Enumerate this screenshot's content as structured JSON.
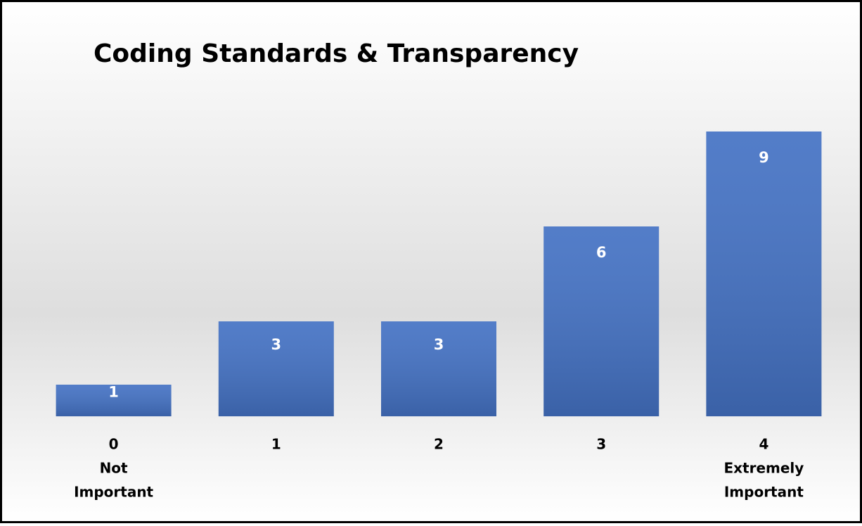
{
  "chart_data": {
    "type": "bar",
    "title": "Coding Standards & Transparency",
    "categories": [
      [
        "0",
        "Not",
        "Important"
      ],
      [
        "1"
      ],
      [
        "2"
      ],
      [
        "3"
      ],
      [
        "4",
        "Extremely",
        "Important"
      ]
    ],
    "values": [
      1,
      3,
      3,
      6,
      9
    ],
    "color": "#4472c4",
    "grid": false
  }
}
